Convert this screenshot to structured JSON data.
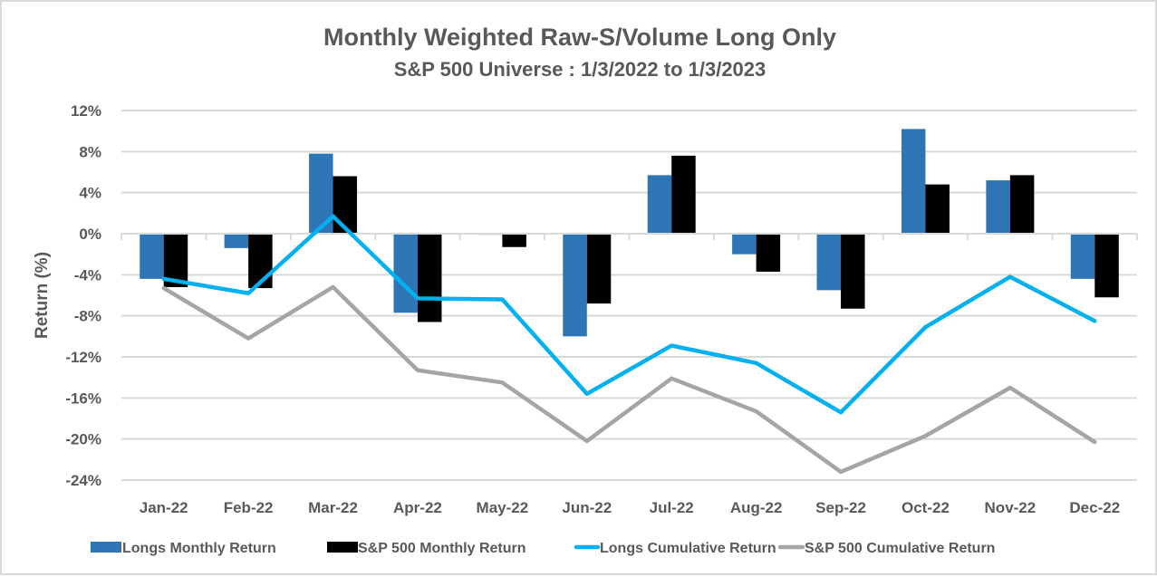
{
  "chart_data": {
    "type": "bar",
    "title": "Monthly Weighted Raw-S/Volume Long Only",
    "subtitle": "S&P 500 Universe : 1/3/2022 to 1/3/2023",
    "xlabel": "",
    "ylabel": "Return (%)",
    "ylim": [
      -24,
      12
    ],
    "yticks": [
      12,
      8,
      4,
      0,
      -4,
      -8,
      -12,
      -16,
      -20,
      -24
    ],
    "ytick_labels": [
      "12%",
      "8%",
      "4%",
      "0%",
      "-4%",
      "-8%",
      "-12%",
      "-16%",
      "-20%",
      "-24%"
    ],
    "grid": true,
    "legend_position": "bottom",
    "categories": [
      "Jan-22",
      "Feb-22",
      "Mar-22",
      "Apr-22",
      "May-22",
      "Jun-22",
      "Jul-22",
      "Aug-22",
      "Sep-22",
      "Oct-22",
      "Nov-22",
      "Dec-22"
    ],
    "series": [
      {
        "name": "Longs Monthly Return",
        "type": "bar",
        "color": "#2e75b6",
        "values": [
          -4.4,
          -1.4,
          7.8,
          -7.7,
          -0.1,
          -10.0,
          5.7,
          -2.0,
          -5.5,
          10.2,
          5.2,
          -4.4
        ]
      },
      {
        "name": "S&P 500 Monthly Return",
        "type": "bar",
        "color": "#000000",
        "values": [
          -5.2,
          -5.3,
          5.6,
          -8.6,
          -1.3,
          -6.8,
          7.6,
          -3.7,
          -7.3,
          4.8,
          5.7,
          -6.2
        ]
      },
      {
        "name": "Longs Cumulative Return",
        "type": "line",
        "color": "#00b0f0",
        "values": [
          -4.4,
          -5.8,
          1.7,
          -6.3,
          -6.4,
          -15.6,
          -10.9,
          -12.6,
          -17.4,
          -9.1,
          -4.2,
          -8.5
        ]
      },
      {
        "name": "S&P 500 Cumulative Return",
        "type": "line",
        "color": "#a5a5a5",
        "values": [
          -5.3,
          -10.2,
          -5.2,
          -13.3,
          -14.5,
          -20.2,
          -14.1,
          -17.3,
          -23.2,
          -19.7,
          -15.0,
          -20.3
        ]
      }
    ]
  }
}
